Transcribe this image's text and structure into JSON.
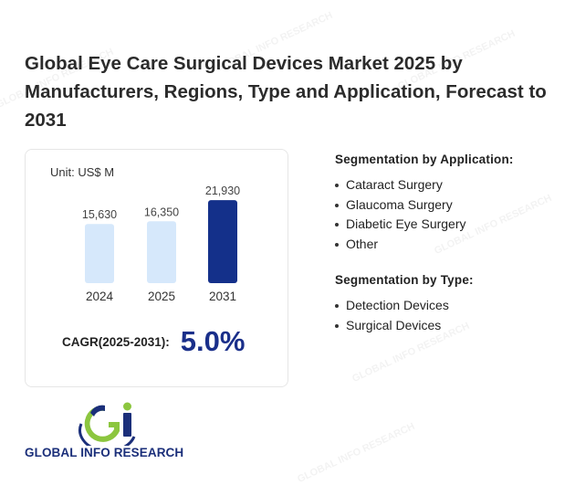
{
  "title": "Global Eye Care Surgical Devices Market 2025 by Manufacturers, Regions, Type and Application, Forecast to 2031",
  "chart_data": {
    "type": "bar",
    "unit_label": "Unit: US$ M",
    "categories": [
      "2024",
      "2025",
      "2031"
    ],
    "values": [
      15630,
      16350,
      21930
    ],
    "value_labels": [
      "15,630",
      "16,350",
      "21,930"
    ],
    "bar_colors": [
      "#d6e8fb",
      "#d6e8fb",
      "#14308a"
    ],
    "ylim": [
      0,
      22000
    ]
  },
  "cagr": {
    "label": "CAGR(2025-2031):",
    "value": "5.0%"
  },
  "segmentation_application": {
    "title": "Segmentation by Application:",
    "items": [
      "Cataract Surgery",
      "Glaucoma Surgery",
      "Diabetic Eye Surgery",
      "Other"
    ]
  },
  "segmentation_type": {
    "title": "Segmentation by Type:",
    "items": [
      "Detection Devices",
      "Surgical Devices"
    ]
  },
  "logo": {
    "text": "GLOBAL INFO RESEARCH"
  },
  "colors": {
    "accent": "#1a2f8a",
    "logo_green": "#8cc63f",
    "logo_blue": "#1b2f7a"
  }
}
